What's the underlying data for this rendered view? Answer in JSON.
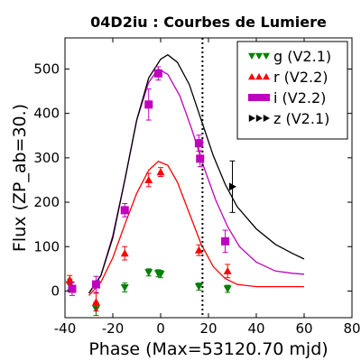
{
  "chart_data": {
    "type": "scatter",
    "title": "04D2iu : Courbes de Lumiere",
    "xlabel": "Phase (Max=53120.70 mjd)",
    "ylabel": "Flux (ZP_ab=30.)",
    "xlim": [
      -40,
      80
    ],
    "ylim": [
      -60,
      570
    ],
    "xticks": [
      "-40",
      "-20",
      "0",
      "20",
      "40",
      "60",
      "80"
    ],
    "yticks": [
      "0",
      "100",
      "200",
      "300",
      "400",
      "500"
    ],
    "xtick_values": [
      -40,
      -20,
      0,
      20,
      40,
      60,
      80
    ],
    "ytick_values": [
      0,
      100,
      200,
      300,
      400,
      500
    ],
    "legend_position": "top-right",
    "vline_x": 17.5,
    "series": [
      {
        "name": "g (V2.1)",
        "color": "#007f00",
        "marker": "triangle-down",
        "points": [
          {
            "x": -38,
            "y": 15,
            "err": 12
          },
          {
            "x": -27,
            "y": -40,
            "err": 15
          },
          {
            "x": -15,
            "y": 8,
            "err": 10
          },
          {
            "x": -5,
            "y": 42,
            "err": 8
          },
          {
            "x": -1,
            "y": 40,
            "err": 8
          },
          {
            "x": 0,
            "y": 38,
            "err": 8
          },
          {
            "x": 16,
            "y": 10,
            "err": 8
          },
          {
            "x": 28,
            "y": 5,
            "err": 8
          }
        ],
        "curve": []
      },
      {
        "name": "r (V2.2)",
        "color": "#ff0000",
        "marker": "triangle-up",
        "points": [
          {
            "x": -38,
            "y": 25,
            "err": 10
          },
          {
            "x": -27,
            "y": -25,
            "err": 20
          },
          {
            "x": -15,
            "y": 85,
            "err": 15
          },
          {
            "x": -5,
            "y": 250,
            "err": 15
          },
          {
            "x": 0,
            "y": 268,
            "err": 10
          },
          {
            "x": 16,
            "y": 92,
            "err": 12
          },
          {
            "x": 28,
            "y": 45,
            "err": 15
          }
        ],
        "curve": [
          [
            -30,
            -10
          ],
          [
            -25,
            20
          ],
          [
            -20,
            75
          ],
          [
            -15,
            150
          ],
          [
            -10,
            220
          ],
          [
            -5,
            272
          ],
          [
            -1,
            292
          ],
          [
            3,
            283
          ],
          [
            7,
            245
          ],
          [
            12,
            175
          ],
          [
            17,
            105
          ],
          [
            22,
            55
          ],
          [
            27,
            28
          ],
          [
            32,
            15
          ],
          [
            40,
            10
          ],
          [
            50,
            10
          ],
          [
            60,
            10
          ]
        ]
      },
      {
        "name": "i (V2.2)",
        "color": "#bf00bf",
        "marker": "square",
        "points": [
          {
            "x": -37,
            "y": 5,
            "err": 15
          },
          {
            "x": -27,
            "y": 15,
            "err": 18
          },
          {
            "x": -15,
            "y": 182,
            "err": 15
          },
          {
            "x": -5,
            "y": 420,
            "err": 35
          },
          {
            "x": -1,
            "y": 490,
            "err": 15
          },
          {
            "x": 16,
            "y": 333,
            "err": 18
          },
          {
            "x": 16.5,
            "y": 298,
            "err": 18
          },
          {
            "x": 27,
            "y": 112,
            "err": 25
          }
        ],
        "curve": [
          [
            -30,
            -5
          ],
          [
            -25,
            35
          ],
          [
            -20,
            125
          ],
          [
            -15,
            250
          ],
          [
            -10,
            385
          ],
          [
            -5,
            470
          ],
          [
            -1,
            500
          ],
          [
            3,
            488
          ],
          [
            8,
            440
          ],
          [
            13,
            365
          ],
          [
            18,
            280
          ],
          [
            23,
            205
          ],
          [
            28,
            145
          ],
          [
            33,
            100
          ],
          [
            40,
            65
          ],
          [
            48,
            45
          ],
          [
            55,
            40
          ],
          [
            60,
            38
          ]
        ]
      },
      {
        "name": "z (V2.1)",
        "color": "#000000",
        "marker": "triangle-right",
        "points": [
          {
            "x": 30,
            "y": 235,
            "err": 58
          }
        ],
        "curve": [
          [
            -30,
            -5
          ],
          [
            -25,
            35
          ],
          [
            -20,
            120
          ],
          [
            -15,
            250
          ],
          [
            -10,
            385
          ],
          [
            -5,
            480
          ],
          [
            0,
            522
          ],
          [
            3,
            532
          ],
          [
            7,
            515
          ],
          [
            12,
            465
          ],
          [
            17,
            385
          ],
          [
            22,
            305
          ],
          [
            27,
            240
          ],
          [
            32,
            190
          ],
          [
            40,
            140
          ],
          [
            48,
            105
          ],
          [
            55,
            85
          ],
          [
            60,
            72
          ]
        ]
      }
    ]
  }
}
